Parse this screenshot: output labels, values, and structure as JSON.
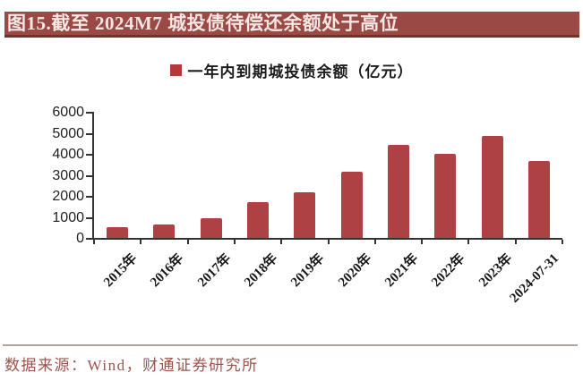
{
  "header": {
    "title": "图15.截至 2024M7 城投债待偿还余额处于高位"
  },
  "chart_data": {
    "type": "bar",
    "title": "一年内到期城投债余额（亿元）",
    "legend": "一年内到期城投债余额（亿元）",
    "categories": [
      "2015年",
      "2016年",
      "2017年",
      "2018年",
      "2019年",
      "2020年",
      "2021年",
      "2022年",
      "2023年",
      "2024-07-31"
    ],
    "values": [
      500,
      620,
      950,
      1700,
      2190,
      3130,
      4410,
      4010,
      4850,
      3650
    ],
    "xlabel": "",
    "ylabel": "",
    "ylim": [
      0,
      6000
    ],
    "y_tick_step": 1000,
    "y_ticks": [
      "0",
      "1000",
      "2000",
      "3000",
      "4000",
      "5000",
      "6000"
    ],
    "grid": false,
    "legend_position": "top-center",
    "bar_color": "#ae4143",
    "axis_color": "#333333"
  },
  "footer": {
    "source": "数据来源：Wind，财通证券研究所"
  },
  "colors": {
    "title_bar_bg": "#9a4945",
    "title_bar_border": "#74302c",
    "title_text": "#f3e6e3",
    "accent_red": "#ae4143",
    "legend_marker": "#b23a3a",
    "divider": "#b3a19f",
    "footer_text": "#9b544e"
  }
}
